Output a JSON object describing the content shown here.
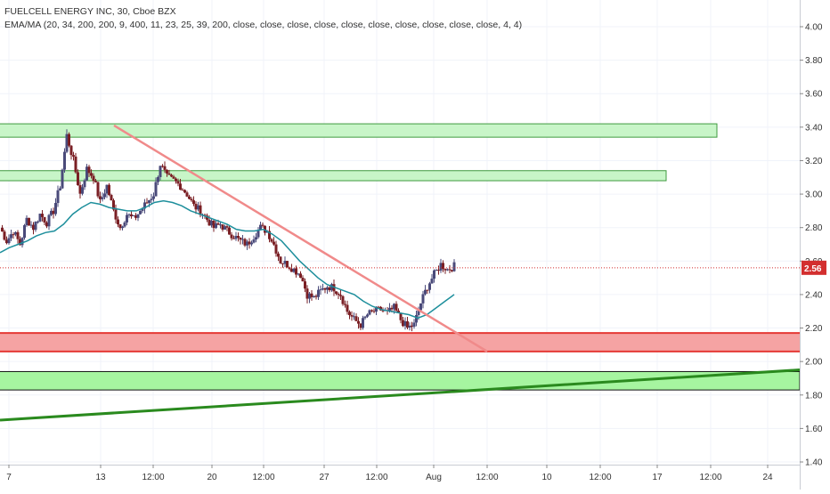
{
  "legend": {
    "title": "FUELCELL ENERGY INC, 30, Cboe BZX",
    "indicator": "EMA/MA (20, 34, 200, 200, 9, 400, 11, 23, 25, 39, 200, close, close, close, close, close, close, close, close, close, close, 4, 4)"
  },
  "chart_data": {
    "type": "candlestick",
    "ylim": [
      1.4,
      4.1
    ],
    "y_ticks": [
      "4.00",
      "3.80",
      "3.60",
      "3.40",
      "3.20",
      "3.00",
      "2.80",
      "2.60",
      "2.40",
      "2.20",
      "2.00",
      "1.80",
      "1.60",
      "1.40"
    ],
    "x_ticks": [
      "7",
      "13",
      "12:00",
      "20",
      "12:00",
      "27",
      "12:00",
      "Aug",
      "12:00",
      "10",
      "12:00",
      "17",
      "12:00",
      "24"
    ],
    "last_price": "2.56",
    "last_price_value": 2.56,
    "colors": {
      "up": "#4a4a7a",
      "down": "#7a1f24",
      "ema": "#1e8f9c",
      "downtrend": "#f08a8a",
      "uptrend": "#2a8a1e",
      "resistance_zone": "#c8f5c8",
      "support_zone_red": "#f5a3a3",
      "support_zone_green": "#a6f5a0",
      "price_line": "#d32f2f"
    },
    "ohlc_path": [
      2.8,
      2.72,
      2.78,
      2.7,
      2.85,
      2.8,
      2.88,
      2.83,
      2.9,
      3.05,
      3.35,
      3.2,
      3.0,
      3.15,
      3.1,
      2.95,
      3.05,
      2.9,
      2.8,
      2.88,
      2.85,
      2.9,
      2.95,
      3.0,
      3.18,
      3.1,
      3.08,
      3.05,
      3.0,
      2.93,
      2.9,
      2.85,
      2.8,
      2.82,
      2.78,
      2.75,
      2.72,
      2.7,
      2.75,
      2.8,
      2.78,
      2.7,
      2.6,
      2.58,
      2.55,
      2.52,
      2.4,
      2.38,
      2.42,
      2.45,
      2.44,
      2.4,
      2.3,
      2.25,
      2.22,
      2.28,
      2.3,
      2.31,
      2.29,
      2.32,
      2.25,
      2.2,
      2.22,
      2.35,
      2.45,
      2.52,
      2.58,
      2.55,
      2.57
    ],
    "ema_series": [
      2.65,
      2.68,
      2.7,
      2.72,
      2.75,
      2.77,
      2.78,
      2.82,
      2.88,
      2.92,
      2.95,
      2.94,
      2.92,
      2.91,
      2.9,
      2.9,
      2.92,
      2.95,
      2.96,
      2.95,
      2.93,
      2.9,
      2.88,
      2.86,
      2.84,
      2.82,
      2.79,
      2.78,
      2.78,
      2.79,
      2.76,
      2.72,
      2.66,
      2.6,
      2.55,
      2.5,
      2.46,
      2.44,
      2.42,
      2.4,
      2.36,
      2.33,
      2.31,
      2.3,
      2.29,
      2.28,
      2.26,
      2.28,
      2.32,
      2.36,
      2.4
    ],
    "ema_x_range": [
      0,
      510
    ],
    "downtrend_line": {
      "from": [
        128,
        3.41
      ],
      "to": [
        547,
        2.06
      ]
    },
    "uptrend_line": {
      "from": [
        0,
        1.65
      ],
      "to": [
        898,
        1.95
      ]
    },
    "zones": [
      {
        "name": "resistance-zone-upper",
        "y_top": 3.42,
        "y_bottom": 3.34,
        "x_end": 805,
        "kind": "green"
      },
      {
        "name": "resistance-zone-lower",
        "y_top": 3.14,
        "y_bottom": 3.08,
        "x_end": 748,
        "kind": "green"
      },
      {
        "name": "support-zone-red",
        "y_top": 2.17,
        "y_bottom": 2.06,
        "x_end": 898,
        "kind": "red"
      },
      {
        "name": "support-zone-green",
        "y_top": 1.94,
        "y_bottom": 1.83,
        "x_end": 898,
        "kind": "green"
      }
    ]
  }
}
